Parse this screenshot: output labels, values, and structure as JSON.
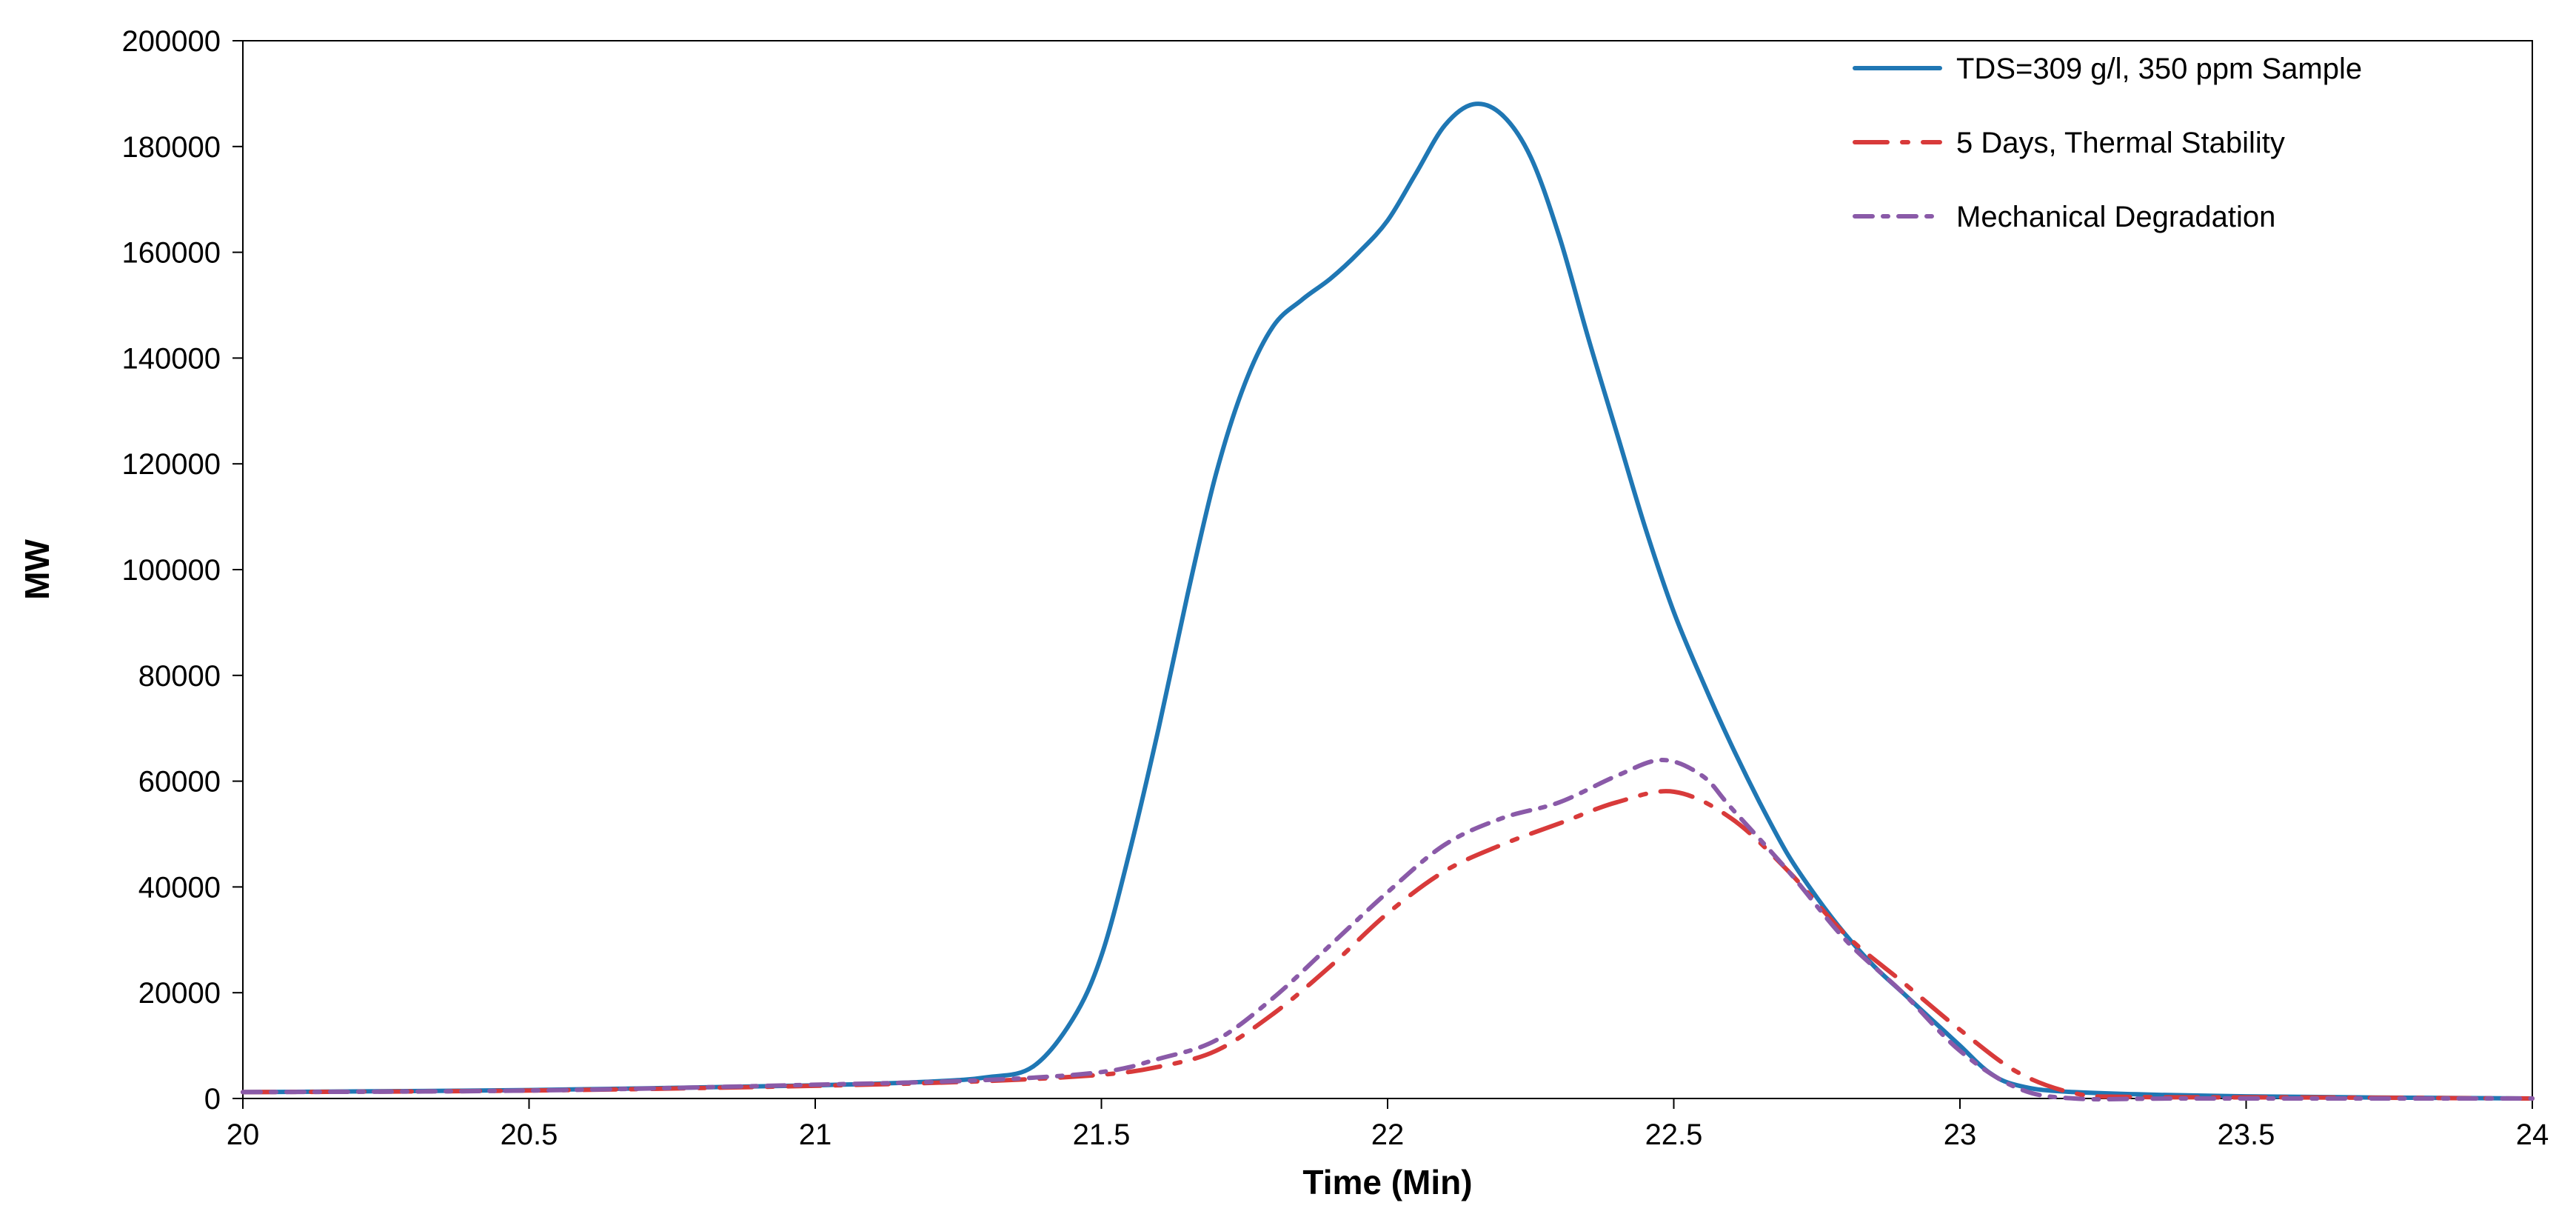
{
  "chart_data": {
    "type": "line",
    "title": "",
    "xlabel": "Time (Min)",
    "ylabel": "MW",
    "xlim": [
      20,
      24
    ],
    "ylim": [
      0,
      200000
    ],
    "grid": false,
    "legend_position": "top-right",
    "x_ticks": [
      "20",
      "20.5",
      "21",
      "21.5",
      "22",
      "22.5",
      "23",
      "23.5",
      "24"
    ],
    "y_ticks": [
      "0",
      "20000",
      "40000",
      "60000",
      "80000",
      "100000",
      "120000",
      "140000",
      "160000",
      "180000",
      "200000"
    ],
    "series": [
      {
        "name": "TDS=309 g/l, 350 ppm Sample",
        "color": "#1f77b4",
        "dash": "solid",
        "points": [
          [
            20,
            1200
          ],
          [
            20.5,
            1600
          ],
          [
            21,
            2500
          ],
          [
            21.2,
            3200
          ],
          [
            21.3,
            4000
          ],
          [
            21.38,
            6000
          ],
          [
            21.45,
            15000
          ],
          [
            21.5,
            27000
          ],
          [
            21.55,
            47000
          ],
          [
            21.6,
            70000
          ],
          [
            21.65,
            95000
          ],
          [
            21.7,
            118000
          ],
          [
            21.75,
            135000
          ],
          [
            21.8,
            146000
          ],
          [
            21.85,
            151000
          ],
          [
            21.9,
            155000
          ],
          [
            21.95,
            160000
          ],
          [
            22,
            166000
          ],
          [
            22.05,
            175000
          ],
          [
            22.1,
            184000
          ],
          [
            22.15,
            188000
          ],
          [
            22.2,
            186000
          ],
          [
            22.25,
            178000
          ],
          [
            22.3,
            163000
          ],
          [
            22.35,
            144000
          ],
          [
            22.4,
            126000
          ],
          [
            22.45,
            108000
          ],
          [
            22.5,
            92000
          ],
          [
            22.55,
            79000
          ],
          [
            22.6,
            67000
          ],
          [
            22.65,
            56000
          ],
          [
            22.7,
            46000
          ],
          [
            22.75,
            38000
          ],
          [
            22.8,
            31000
          ],
          [
            22.85,
            25000
          ],
          [
            22.9,
            20000
          ],
          [
            22.95,
            15000
          ],
          [
            23,
            10000
          ],
          [
            23.05,
            5000
          ],
          [
            23.1,
            2500
          ],
          [
            23.2,
            1200
          ],
          [
            23.5,
            400
          ],
          [
            24,
            0
          ]
        ]
      },
      {
        "name": "5 Days, Thermal Stability",
        "color": "#d83a3a",
        "dash": "long-dash-dot",
        "points": [
          [
            20,
            1200
          ],
          [
            20.5,
            1500
          ],
          [
            21,
            2400
          ],
          [
            21.3,
            3300
          ],
          [
            21.5,
            4500
          ],
          [
            21.6,
            6000
          ],
          [
            21.7,
            9000
          ],
          [
            21.8,
            16000
          ],
          [
            21.9,
            25000
          ],
          [
            22,
            35000
          ],
          [
            22.1,
            43000
          ],
          [
            22.2,
            48000
          ],
          [
            22.3,
            52000
          ],
          [
            22.4,
            56000
          ],
          [
            22.5,
            58000
          ],
          [
            22.6,
            53000
          ],
          [
            22.7,
            43000
          ],
          [
            22.8,
            31000
          ],
          [
            22.9,
            22000
          ],
          [
            23,
            13000
          ],
          [
            23.1,
            5000
          ],
          [
            23.2,
            1000
          ],
          [
            23.3,
            300
          ],
          [
            23.6,
            200
          ],
          [
            24,
            0
          ]
        ]
      },
      {
        "name": "Mechanical Degradation",
        "color": "#8a5aa8",
        "dash": "dash-dot",
        "points": [
          [
            20,
            1200
          ],
          [
            20.5,
            1500
          ],
          [
            21,
            2600
          ],
          [
            21.3,
            3500
          ],
          [
            21.5,
            5000
          ],
          [
            21.6,
            7500
          ],
          [
            21.7,
            11000
          ],
          [
            21.8,
            19000
          ],
          [
            21.9,
            29000
          ],
          [
            22,
            39000
          ],
          [
            22.1,
            48000
          ],
          [
            22.2,
            53000
          ],
          [
            22.3,
            56000
          ],
          [
            22.4,
            61000
          ],
          [
            22.48,
            64000
          ],
          [
            22.55,
            61000
          ],
          [
            22.6,
            55000
          ],
          [
            22.7,
            43000
          ],
          [
            22.8,
            30000
          ],
          [
            22.9,
            20000
          ],
          [
            23,
            9000
          ],
          [
            23.1,
            2000
          ],
          [
            23.2,
            0
          ],
          [
            23.4,
            0
          ],
          [
            24,
            0
          ]
        ]
      }
    ]
  }
}
